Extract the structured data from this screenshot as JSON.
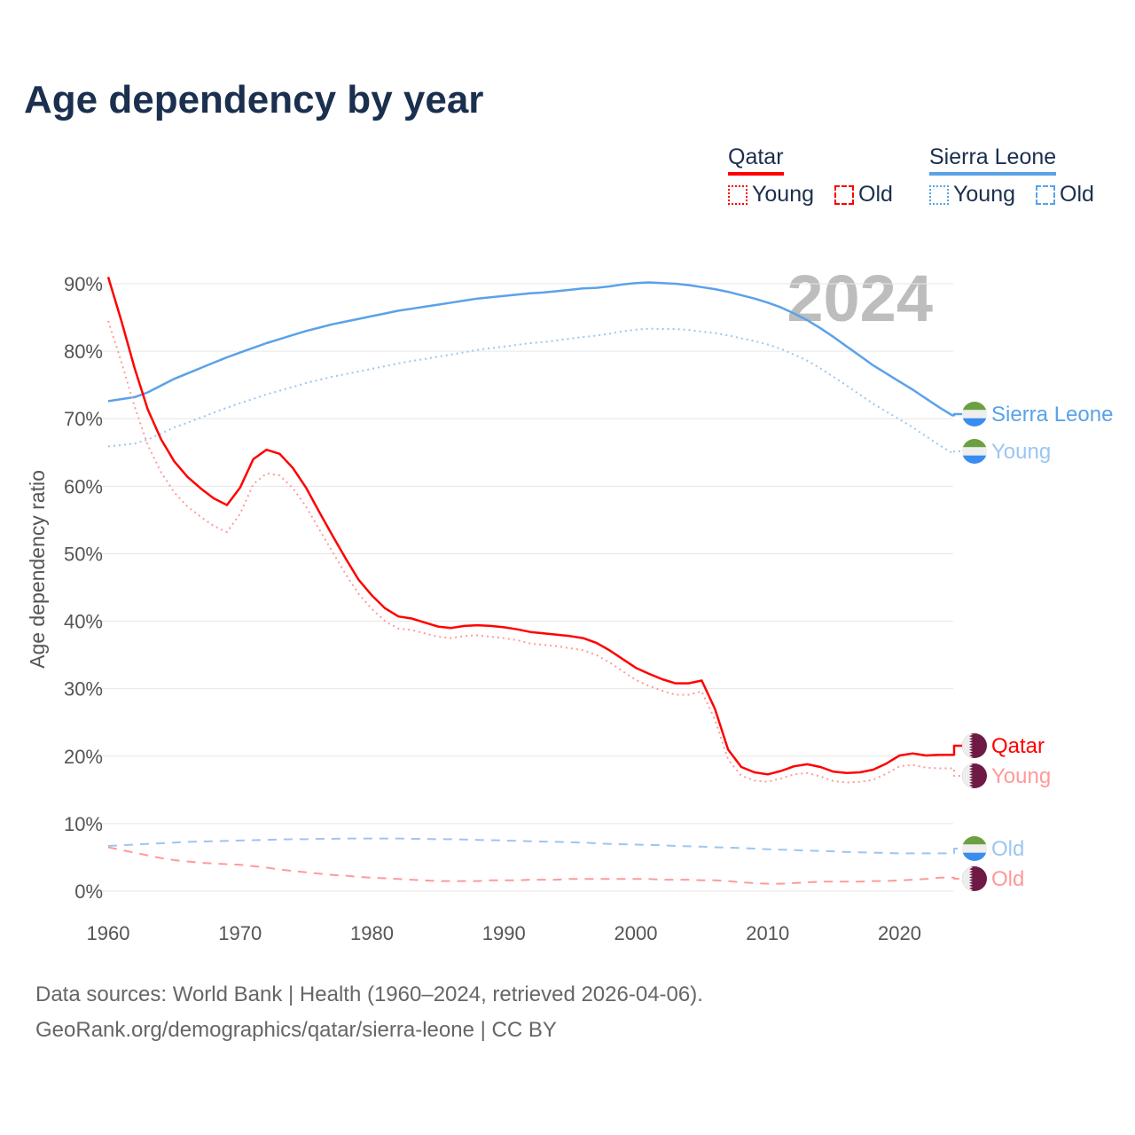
{
  "title": "Age dependency by year",
  "legend": {
    "qatar": {
      "label": "Qatar",
      "young": "Young",
      "old": "Old"
    },
    "sierra_leone": {
      "label": "Sierra Leone",
      "young": "Young",
      "old": "Old"
    }
  },
  "colors": {
    "qatar": "#ff0000",
    "qatar_light": "#ff9a9a",
    "sierra_leone": "#5aa2e8",
    "sierra_leone_light": "#9cc6f0",
    "qatar_flag": "#6e1a45",
    "sl_green": "#6aa040",
    "sl_blue": "#3a8cf0"
  },
  "footer": {
    "line1": "Data sources: World Bank | Health (1960–2024, retrieved 2026-04-06).",
    "line2": "GeoRank.org/demographics/qatar/sierra-leone | CC BY"
  },
  "chart_data": {
    "type": "line",
    "title": "Age dependency by year",
    "ylabel": "Age dependency ratio",
    "xlabel": "",
    "xlim": [
      1960,
      2024
    ],
    "ylim": [
      0,
      90
    ],
    "x_ticks": [
      "1960",
      "1970",
      "1980",
      "1990",
      "2000",
      "2010",
      "2020"
    ],
    "y_ticks": [
      "0%",
      "10%",
      "20%",
      "30%",
      "40%",
      "50%",
      "60%",
      "70%",
      "80%",
      "90%"
    ],
    "year_watermark": "2024",
    "x_start": 1960,
    "series": [
      {
        "name": "Sierra Leone",
        "end_label": "Sierra Leone",
        "country": "sl",
        "style": "solid",
        "color": "#5aa2e8",
        "values": [
          72.6,
          72.9,
          73.2,
          73.9,
          74.9,
          75.9,
          76.7,
          77.5,
          78.3,
          79.1,
          79.8,
          80.5,
          81.2,
          81.8,
          82.4,
          83.0,
          83.5,
          84.0,
          84.4,
          84.8,
          85.2,
          85.6,
          86.0,
          86.3,
          86.6,
          86.9,
          87.2,
          87.5,
          87.8,
          88.0,
          88.2,
          88.4,
          88.6,
          88.7,
          88.9,
          89.1,
          89.3,
          89.4,
          89.6,
          89.9,
          90.1,
          90.2,
          90.1,
          90.0,
          89.8,
          89.5,
          89.2,
          88.8,
          88.3,
          87.8,
          87.2,
          86.5,
          85.6,
          84.6,
          83.4,
          82.1,
          80.7,
          79.3,
          77.9,
          76.7,
          75.5,
          74.3,
          73.0,
          71.7,
          70.5
        ]
      },
      {
        "name": "Sierra Leone Young",
        "end_label": "Young",
        "country": "sl",
        "style": "dotted",
        "color": "#9cc6f0",
        "values": [
          65.9,
          66.1,
          66.3,
          66.9,
          67.8,
          68.7,
          69.4,
          70.15,
          70.9,
          71.65,
          72.3,
          72.95,
          73.6,
          74.15,
          74.7,
          75.3,
          75.75,
          76.25,
          76.6,
          77.0,
          77.4,
          77.8,
          78.2,
          78.55,
          78.85,
          79.2,
          79.5,
          79.85,
          80.2,
          80.45,
          80.7,
          80.95,
          81.2,
          81.35,
          81.6,
          81.85,
          82.1,
          82.3,
          82.6,
          82.95,
          83.2,
          83.35,
          83.3,
          83.3,
          83.15,
          82.9,
          82.7,
          82.35,
          81.9,
          81.5,
          81.0,
          80.35,
          79.5,
          78.6,
          77.45,
          76.2,
          74.9,
          73.55,
          72.2,
          71.05,
          69.9,
          68.7,
          67.4,
          66.1,
          64.9
        ]
      },
      {
        "name": "Sierra Leone Old",
        "end_label": "Old",
        "country": "sl",
        "style": "dashed",
        "color": "#9cc6f0",
        "values": [
          6.7,
          6.8,
          6.9,
          7.0,
          7.1,
          7.2,
          7.3,
          7.35,
          7.4,
          7.45,
          7.5,
          7.55,
          7.6,
          7.65,
          7.7,
          7.7,
          7.75,
          7.75,
          7.8,
          7.8,
          7.8,
          7.8,
          7.8,
          7.75,
          7.75,
          7.7,
          7.7,
          7.65,
          7.6,
          7.55,
          7.5,
          7.45,
          7.4,
          7.35,
          7.3,
          7.25,
          7.2,
          7.1,
          7.0,
          6.95,
          6.9,
          6.85,
          6.8,
          6.7,
          6.65,
          6.6,
          6.5,
          6.45,
          6.4,
          6.3,
          6.2,
          6.15,
          6.1,
          6.0,
          5.95,
          5.9,
          5.8,
          5.75,
          5.7,
          5.65,
          5.6,
          5.6,
          5.6,
          5.6,
          5.6
        ]
      },
      {
        "name": "Qatar",
        "end_label": "Qatar",
        "country": "qa",
        "style": "solid",
        "color": "#ff0000",
        "values": [
          91,
          84.5,
          77.5,
          71.4,
          67,
          63.7,
          61.4,
          59.7,
          58.2,
          57.2,
          59.8,
          64,
          65.4,
          64.8,
          62.7,
          59.8,
          56.2,
          52.7,
          49.3,
          46.1,
          43.8,
          41.9,
          40.7,
          40.4,
          39.8,
          39.2,
          39.0,
          39.3,
          39.4,
          39.3,
          39.1,
          38.8,
          38.4,
          38.2,
          38.0,
          37.8,
          37.5,
          36.8,
          35.7,
          34.4,
          33.1,
          32.2,
          31.4,
          30.8,
          30.8,
          31.2,
          27,
          21,
          18.4,
          17.6,
          17.3,
          17.8,
          18.5,
          18.8,
          18.4,
          17.7,
          17.5,
          17.6,
          18.0,
          18.9,
          20.1,
          20.4,
          20.1,
          20.2,
          20.2
        ]
      },
      {
        "name": "Qatar Young",
        "end_label": "Young",
        "country": "qa",
        "style": "dotted",
        "color": "#ff9a9a",
        "values": [
          84.5,
          78.4,
          71.8,
          66.1,
          62.1,
          59.1,
          57.0,
          55.5,
          54.1,
          53.2,
          55.9,
          60.3,
          61.9,
          61.6,
          59.7,
          57.0,
          53.6,
          50.3,
          47.0,
          44.0,
          41.8,
          40.0,
          38.9,
          38.7,
          38.2,
          37.7,
          37.5,
          37.8,
          37.9,
          37.7,
          37.5,
          37.2,
          36.7,
          36.5,
          36.3,
          36.0,
          35.7,
          35.0,
          33.9,
          32.6,
          31.3,
          30.4,
          29.7,
          29.1,
          29.1,
          29.6,
          25.4,
          19.5,
          17.1,
          16.4,
          16.2,
          16.7,
          17.3,
          17.5,
          17.0,
          16.3,
          16.1,
          16.2,
          16.5,
          17.4,
          18.5,
          18.7,
          18.3,
          18.2,
          18.2
        ]
      },
      {
        "name": "Qatar Old",
        "end_label": "Old",
        "country": "qa",
        "style": "dashed",
        "color": "#ff9a9a",
        "values": [
          6.5,
          6.1,
          5.7,
          5.3,
          4.9,
          4.6,
          4.4,
          4.2,
          4.1,
          4.0,
          3.9,
          3.7,
          3.5,
          3.2,
          3.0,
          2.8,
          2.6,
          2.4,
          2.3,
          2.1,
          2.0,
          1.9,
          1.8,
          1.7,
          1.6,
          1.5,
          1.5,
          1.5,
          1.5,
          1.6,
          1.6,
          1.6,
          1.7,
          1.7,
          1.7,
          1.8,
          1.8,
          1.8,
          1.8,
          1.8,
          1.8,
          1.8,
          1.7,
          1.7,
          1.7,
          1.6,
          1.6,
          1.5,
          1.3,
          1.2,
          1.1,
          1.1,
          1.2,
          1.3,
          1.4,
          1.4,
          1.4,
          1.4,
          1.5,
          1.5,
          1.6,
          1.7,
          1.8,
          2.0,
          2.0
        ]
      }
    ]
  }
}
